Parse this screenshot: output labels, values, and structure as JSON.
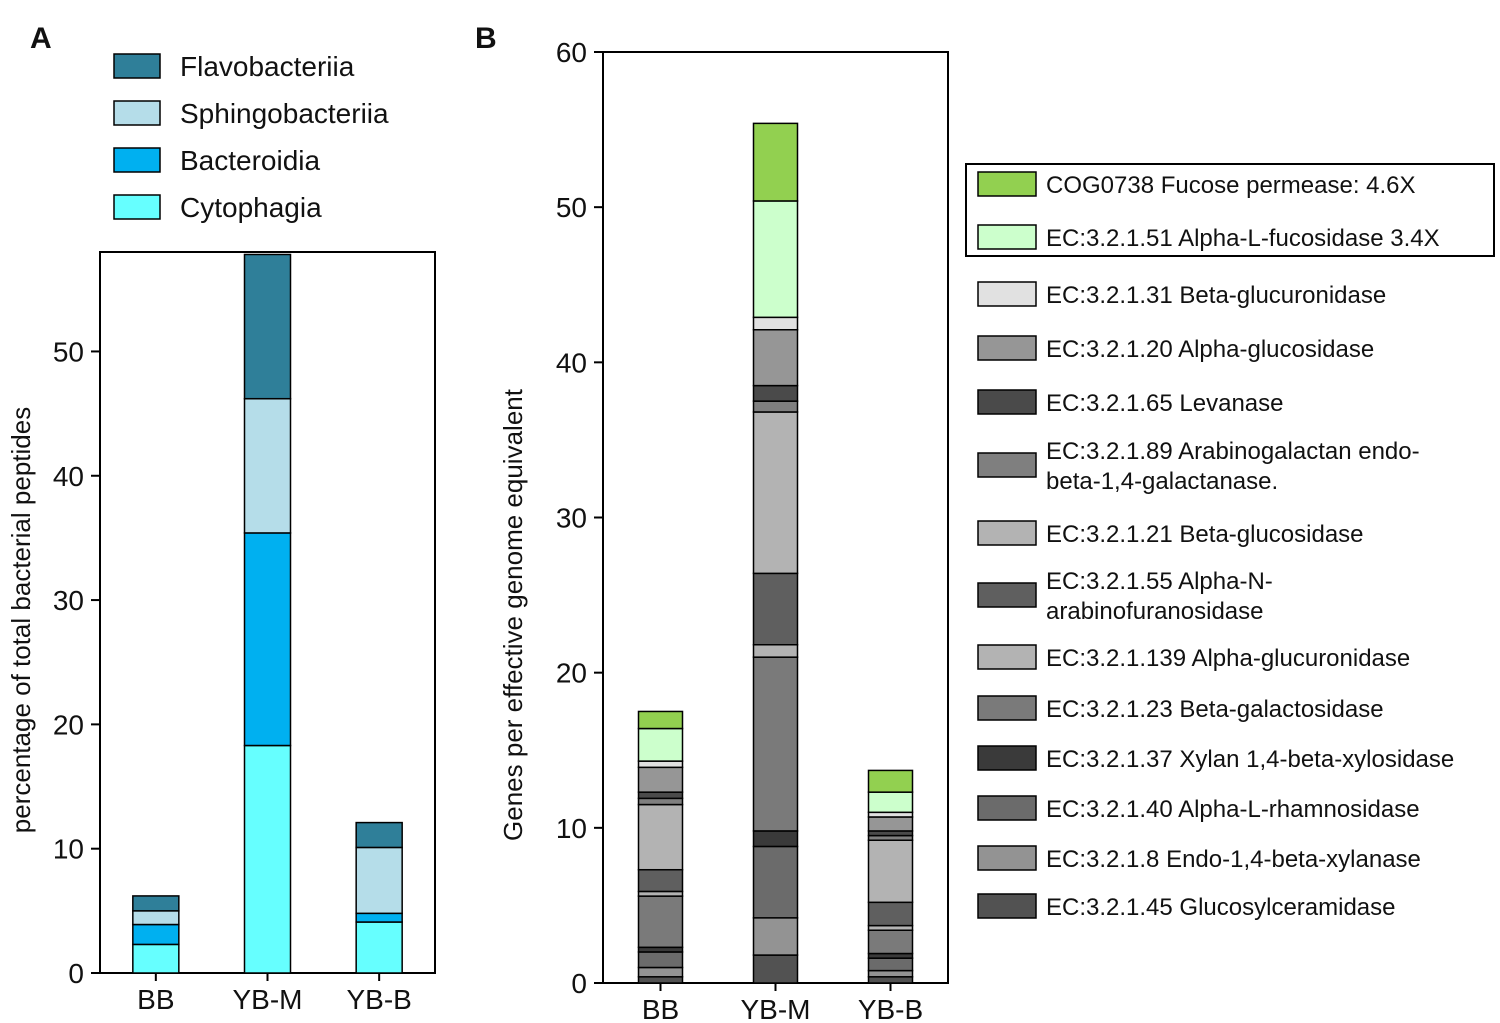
{
  "panel_a": {
    "label": "A",
    "chart_data": {
      "type": "bar",
      "stacked": true,
      "categories": [
        "BB",
        "YB-M",
        "YB-B"
      ],
      "ylabel": "percentage of total bacterial peptides",
      "xlabel": "",
      "ylim": [
        0,
        58
      ],
      "yticks": [
        0,
        10,
        20,
        30,
        40,
        50
      ],
      "legend_position": "top",
      "series": [
        {
          "name": "Cytophagia",
          "color": "#66ffff",
          "values": [
            2.3,
            18.3,
            4.1
          ]
        },
        {
          "name": "Bacteroidia",
          "color": "#00b0f0",
          "values": [
            1.6,
            17.1,
            0.7
          ]
        },
        {
          "name": "Sphingobacteriia",
          "color": "#b5dde9",
          "values": [
            1.1,
            10.8,
            5.3
          ]
        },
        {
          "name": "Flavobacteriia",
          "color": "#2f7f99",
          "values": [
            1.2,
            11.6,
            2.0
          ]
        }
      ]
    }
  },
  "panel_b": {
    "label": "B",
    "chart_data": {
      "type": "bar",
      "stacked": true,
      "categories": [
        "BB",
        "YB-M",
        "YB-B"
      ],
      "ylabel": "Genes per effective genome equivalent",
      "xlabel": "",
      "ylim": [
        0,
        60
      ],
      "yticks": [
        0,
        10,
        20,
        30,
        40,
        50,
        60
      ],
      "legend_position": "right",
      "series": [
        {
          "name": "EC:3.2.1.45 Glucosylceramidase",
          "color": "#525252",
          "values": [
            0.4,
            1.8,
            0.4
          ]
        },
        {
          "name": "EC:3.2.1.8 Endo-1,4-beta-xylanase",
          "color": "#939393",
          "values": [
            0.6,
            2.4,
            0.4
          ]
        },
        {
          "name": "EC:3.2.1.40 Alpha-L-rhamnosidase",
          "color": "#6b6b6b",
          "values": [
            1.0,
            4.6,
            0.8
          ]
        },
        {
          "name": "EC:3.2.1.37 Xylan 1,4-beta-xylosidase",
          "color": "#3a3a3a",
          "values": [
            0.3,
            1.0,
            0.3
          ]
        },
        {
          "name": "EC:3.2.1.23 Beta-galactosidase",
          "color": "#7a7a7a",
          "values": [
            3.3,
            11.2,
            1.5
          ]
        },
        {
          "name": "EC:3.2.1.139 Alpha-glucuronidase",
          "color": "#b3b3b3",
          "values": [
            0.3,
            0.8,
            0.3
          ]
        },
        {
          "name": "EC:3.2.1.55 Alpha-N-arabinofuranosidase",
          "color": "#5f5f5f",
          "values": [
            1.4,
            4.6,
            1.5
          ]
        },
        {
          "name": "EC:3.2.1.21 Beta-glucosidase",
          "color": "#b3b3b3",
          "values": [
            4.2,
            10.4,
            4.0
          ]
        },
        {
          "name": "EC:3.2.1.89 Arabinogalactan endo-beta-1,4-galactanase.",
          "color": "#7f7f7f",
          "values": [
            0.4,
            0.7,
            0.3
          ]
        },
        {
          "name": "EC:3.2.1.65 Levanase",
          "color": "#4a4a4a",
          "values": [
            0.4,
            1.0,
            0.3
          ]
        },
        {
          "name": "EC:3.2.1.20 Alpha-glucosidase",
          "color": "#969696",
          "values": [
            1.6,
            3.6,
            0.9
          ]
        },
        {
          "name": "EC:3.2.1.31 Beta-glucuronidase",
          "color": "#e1e1e1",
          "values": [
            0.4,
            0.8,
            0.3
          ]
        },
        {
          "name": "EC:3.2.1.51 Alpha-L-fucosidase 3.4X",
          "color": "#ccffcc",
          "values": [
            2.1,
            7.5,
            1.3
          ]
        },
        {
          "name": "COG0738 Fucose permease: 4.6X",
          "color": "#92d050",
          "values": [
            1.1,
            5.0,
            1.4
          ]
        }
      ]
    }
  }
}
